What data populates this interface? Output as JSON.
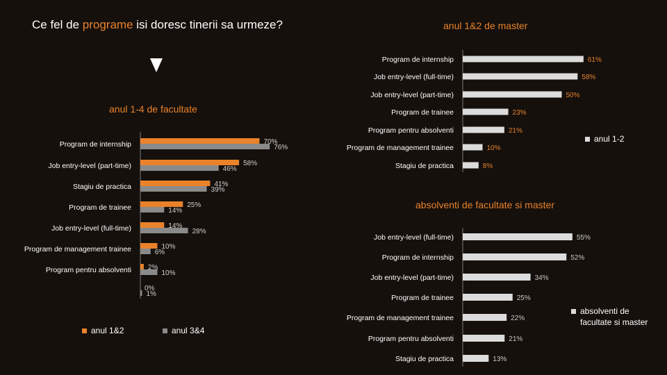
{
  "header": {
    "title_part1": "Ce fel de ",
    "title_accent": "programe",
    "title_part2": " isi doresc tinerii sa urmeze?"
  },
  "colors": {
    "background": "#15100c",
    "accent": "#e9822b",
    "gray_bar": "#8a8a8a",
    "light_bar": "#dcdcdc"
  },
  "chart_data": [
    {
      "type": "bar",
      "orientation": "horizontal",
      "title": "anul 1-4 de facultate",
      "categories": [
        "Program de internship",
        "Job entry-level (part-time)",
        "Stagiu de practica",
        "Program de trainee",
        "Job entry-level (full-time)",
        "Program de management trainee",
        "Program pentru absolventi",
        ""
      ],
      "series": [
        {
          "name": "anul 1&2",
          "color": "#e9822b",
          "values": [
            70,
            58,
            41,
            25,
            14,
            10,
            2,
            0
          ]
        },
        {
          "name": "anul 3&4",
          "color": "#8a8a8a",
          "values": [
            76,
            46,
            39,
            14,
            28,
            6,
            10,
            1
          ]
        }
      ],
      "value_suffix": "%",
      "legend": "bottom"
    },
    {
      "type": "bar",
      "orientation": "horizontal",
      "title": "anul 1&2 de master",
      "categories": [
        "Program de internship",
        "Job entry-level (full-time)",
        "Job entry-level (part-time)",
        "Program de trainee",
        "Program pentru absolventi",
        "Program de management trainee",
        "Stagiu de practica"
      ],
      "series": [
        {
          "name": "anul 1-2",
          "color": "#dcdcdc",
          "values": [
            61,
            58,
            50,
            23,
            21,
            10,
            8
          ]
        }
      ],
      "value_suffix": "%",
      "value_label_color": "#e9822b",
      "legend": "right"
    },
    {
      "type": "bar",
      "orientation": "horizontal",
      "title": "absolventi de facultate si master",
      "categories": [
        "Job entry-level (full-time)",
        "Program de internship",
        "Job entry-level (part-time)",
        "Program de trainee",
        "Program de management trainee",
        "Program pentru absolventi",
        "Stagiu de practica"
      ],
      "series": [
        {
          "name": "absolventi de facultate si master",
          "name_lines": [
            "absolventi de",
            "facultate si master"
          ],
          "color": "#dcdcdc",
          "values": [
            55,
            52,
            34,
            25,
            22,
            21,
            13
          ]
        }
      ],
      "value_suffix": "%",
      "value_label_color": "#c8c8c8",
      "legend": "right"
    }
  ]
}
